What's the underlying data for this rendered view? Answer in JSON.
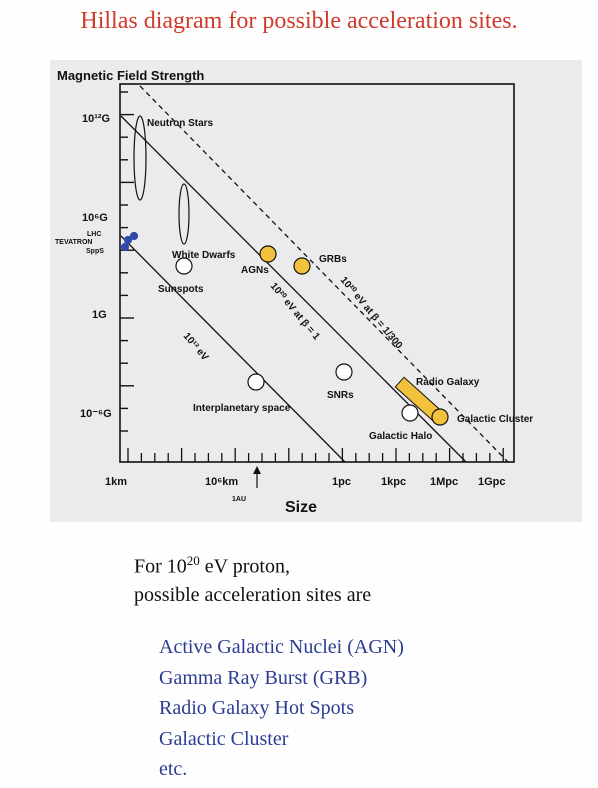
{
  "title": "Hillas diagram for possible acceleration sites.",
  "chart_data": {
    "type": "scatter",
    "ylabel": "Magnetic Field Strength",
    "xlabel": "Size",
    "x_ticks": [
      "1km",
      "10⁶km",
      "1pc",
      "1kpc",
      "1Mpc",
      "1Gpc"
    ],
    "x_tick_1au": "1AU",
    "y_ticks": [
      "10¹²G",
      "10⁶G",
      "1G",
      "10⁻⁶G"
    ],
    "lines": [
      {
        "name": "10²⁰ eV at β = 1/300",
        "label_main": "10²⁰ eV at β = 1/300",
        "style": "dashed"
      },
      {
        "name": "10²⁰ eV at β = 1",
        "label_main": "10²⁰ eV at β = 1",
        "style": "solid"
      },
      {
        "name": "10¹² eV",
        "label_main": "10¹² eV",
        "style": "solid"
      }
    ],
    "objects": [
      {
        "name": "Neutron Stars",
        "shape": "ellipse"
      },
      {
        "name": "White Dwarfs",
        "shape": "ellipse"
      },
      {
        "name": "Sunspots",
        "shape": "circle"
      },
      {
        "name": "AGNs",
        "shape": "circle",
        "highlighted": true
      },
      {
        "name": "GRBs",
        "shape": "circle",
        "highlighted": true
      },
      {
        "name": "SNRs",
        "shape": "circle"
      },
      {
        "name": "Interplanetary space",
        "shape": "circle"
      },
      {
        "name": "Radio Galaxy",
        "shape": "bar",
        "highlighted": true
      },
      {
        "name": "Galactic Halo",
        "shape": "circle"
      },
      {
        "name": "Galactic Cluster",
        "shape": "circle",
        "highlighted": true
      },
      {
        "name": "LHC",
        "shape": "dot"
      },
      {
        "name": "TEVATRON",
        "shape": "dot"
      },
      {
        "name": "SppS",
        "shape": "dot"
      }
    ],
    "colors": {
      "highlight": "#f3c23c",
      "open": "#ffffff",
      "accelerator": "#2f4aa8",
      "axis": "#111111"
    }
  },
  "caption": {
    "line1_prefix": "For 10",
    "line1_exp": "20",
    "line1_suffix": " eV proton,",
    "line2": "possible acceleration sites are"
  },
  "sites": [
    "Active Galactic Nuclei (AGN)",
    "Gamma Ray Burst (GRB)",
    "Radio Galaxy Hot Spots",
    "Galactic Cluster",
    "etc."
  ]
}
